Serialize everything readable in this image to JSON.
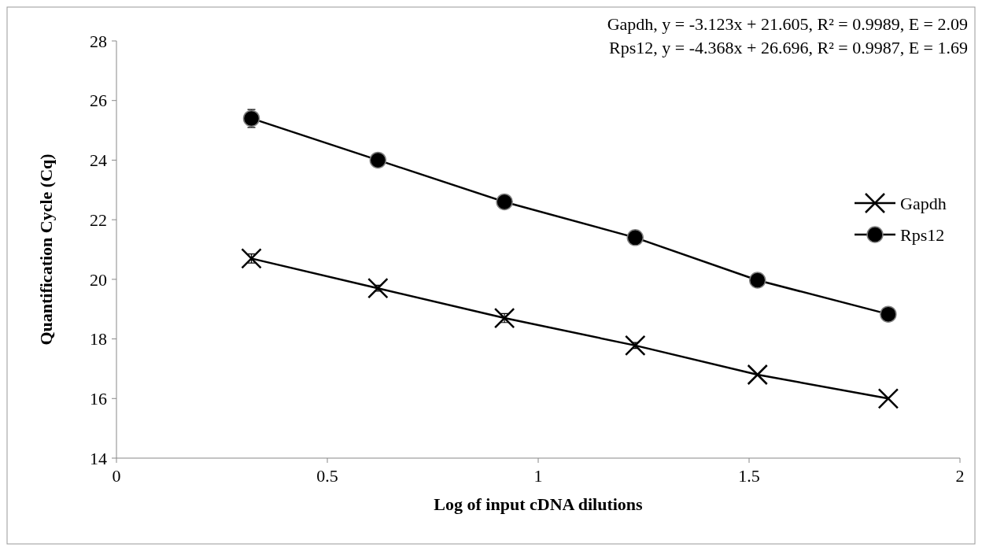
{
  "chart_data": {
    "type": "line",
    "xlabel": "Log of input cDNA dilutions",
    "ylabel": "Quantification Cycle (Cq)",
    "annotations": [
      "Gapdh, y = -3.123x + 21.605, R² = 0.9989, E = 2.09",
      "Rps12, y = -4.368x + 26.696, R² = 0.9987, E = 1.69"
    ],
    "x": [
      0.32,
      0.62,
      0.92,
      1.23,
      1.52,
      1.83
    ],
    "series": [
      {
        "name": "Gapdh",
        "color": "#000000",
        "marker": "cross",
        "values": [
          20.7,
          19.7,
          18.7,
          17.78,
          16.8,
          16.0
        ],
        "errors": [
          0.15,
          0.1,
          0.15,
          0.1,
          null,
          null
        ]
      },
      {
        "name": "Rps12",
        "color": "#000000",
        "marker": "circle",
        "values": [
          25.4,
          24.0,
          22.6,
          21.4,
          19.97,
          18.83
        ],
        "errors": [
          0.3,
          null,
          null,
          null,
          null,
          null
        ]
      }
    ],
    "xlim": [
      0,
      2
    ],
    "xticks": [
      0,
      0.5,
      1,
      1.5,
      2
    ],
    "ylim": [
      14,
      28
    ],
    "yticks": [
      14,
      16,
      18,
      20,
      22,
      24,
      26,
      28
    ],
    "legend": "right",
    "grid": false
  }
}
